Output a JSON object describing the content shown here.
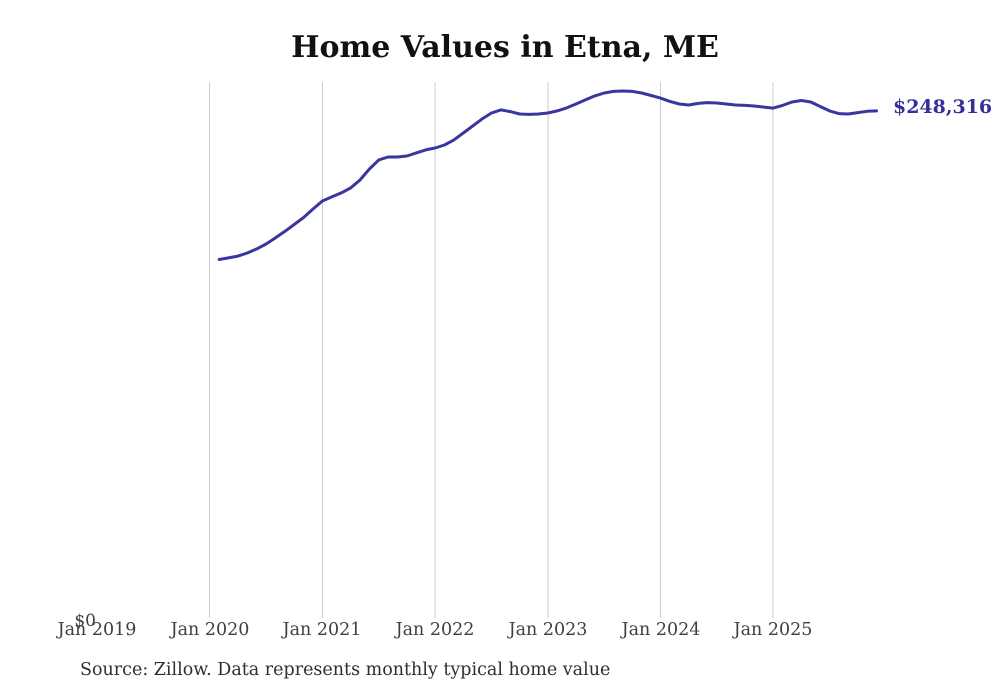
{
  "title": "Home Values in Etna, ME",
  "source_note": "Source: Zillow. Data represents monthly typical home value",
  "y_axis": {
    "zero_label": "$0"
  },
  "colors": {
    "line": "#3a36a0",
    "grid": "#cccccc",
    "tick_label": "#3f3f3f",
    "title": "#111111",
    "end_label": "#333199"
  },
  "chart_data": {
    "type": "line",
    "title": "Home Values in Etna, ME",
    "xlabel": "",
    "ylabel": "",
    "grid": "vertical-only",
    "legend": "none",
    "x_tick_labels": [
      "Jan 2019",
      "Jan 2020",
      "Jan 2021",
      "Jan 2022",
      "Jan 2023",
      "Jan 2024",
      "Jan 2025"
    ],
    "y_tick_labels": [
      "$0"
    ],
    "ylim": [
      0,
      262500
    ],
    "end_label": "$248,316",
    "end_value": 248316,
    "series_name": "Monthly typical home value",
    "first_point_month": "Feb 2020",
    "last_point_month": "Dec 2025",
    "x_months_after_first_tick": 13,
    "values": [
      175400,
      176200,
      177100,
      178600,
      180600,
      183000,
      186000,
      189200,
      192600,
      196000,
      200200,
      204100,
      206100,
      208100,
      210500,
      214400,
      219800,
      224300,
      225700,
      225700,
      226200,
      227700,
      229200,
      230100,
      231600,
      234100,
      237500,
      240900,
      244400,
      247300,
      248800,
      248000,
      246800,
      246600,
      246800,
      247300,
      248300,
      249800,
      251700,
      253700,
      255700,
      257100,
      257900,
      258100,
      257900,
      257100,
      255900,
      254600,
      253000,
      251700,
      251200,
      252000,
      252400,
      252200,
      251700,
      251200,
      251000,
      250700,
      250200,
      249700,
      251000,
      252700,
      253400,
      252700,
      250500,
      248300,
      247000,
      246800,
      247500,
      248100,
      248316
    ]
  }
}
